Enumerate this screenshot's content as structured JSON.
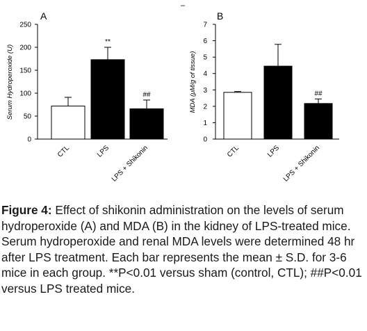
{
  "figure": {
    "stray_mark": "–"
  },
  "chart_data": [
    {
      "type": "bar",
      "panel": "A",
      "ylabel": "Serum Hydroperoxide (U)",
      "ylim": [
        0,
        250
      ],
      "yticks": [
        "0",
        "50",
        "100",
        "150",
        "200",
        "250"
      ],
      "categories": [
        "CTL",
        "LPS",
        "LPS + Shikonin"
      ],
      "series": [
        {
          "values": [
            72,
            173,
            66
          ],
          "errors": [
            19,
            27,
            19
          ],
          "fills": [
            "#ffffff",
            "#000000",
            "#000000"
          ],
          "annotations": [
            "",
            "**",
            "##"
          ]
        }
      ]
    },
    {
      "type": "bar",
      "panel": "B",
      "ylabel": "MDA (μM/g of tissue)",
      "ylim": [
        0,
        7
      ],
      "yticks": [
        "0",
        "1",
        "2",
        "3",
        "4",
        "5",
        "6",
        "7"
      ],
      "categories": [
        "CTL",
        "LPS",
        "LPS + Shikonin"
      ],
      "series": [
        {
          "values": [
            2.85,
            4.45,
            2.17
          ],
          "errors": [
            0.05,
            1.33,
            0.28
          ],
          "fills": [
            "#ffffff",
            "#000000",
            "#000000"
          ],
          "annotations": [
            "",
            "",
            "##"
          ]
        }
      ]
    }
  ],
  "caption": {
    "label": "Figure 4:",
    "text": " Effect of shikonin administration on the levels of serum hydroperoxide (A) and MDA (B) in the kidney of LPS-treated mice. Serum hydroperoxide and renal MDA levels were determined 48 hr after LPS treatment. Each bar represents the mean ± S.D. for 3-6 mice in each group. **P<0.01 versus sham (control, CTL); ##P<0.01 versus LPS treated mice."
  }
}
